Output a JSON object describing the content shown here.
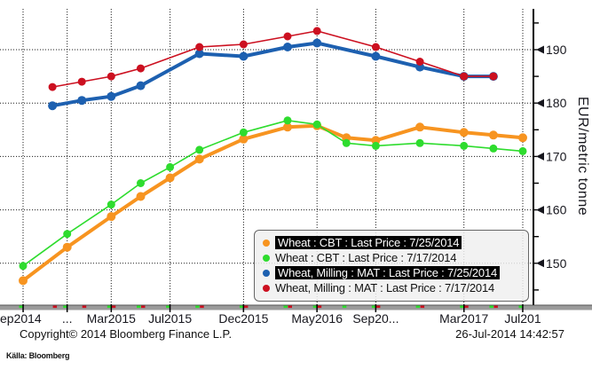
{
  "chart_data": {
    "type": "line",
    "title": "",
    "xlabel": "",
    "ylabel": "EUR/metric tonne",
    "ylim": [
      142,
      198
    ],
    "y_major_ticks": [
      150,
      160,
      170,
      180,
      190
    ],
    "y_minor_ticks": [
      145,
      155,
      165,
      175,
      185,
      195
    ],
    "grid": "dotted",
    "legend_position": "bottom-right",
    "x_axis_note": "futures contract months, Sep2014 through Jul2017 (m = months after Sep2014)",
    "x_ticks": [
      {
        "label": "ep2014",
        "m": 0
      },
      {
        "label": "...",
        "m": 3
      },
      {
        "label": "Mar2015",
        "m": 6
      },
      {
        "label": "Jul2015",
        "m": 10
      },
      {
        "label": "Dec2015",
        "m": 15
      },
      {
        "label": "May2016",
        "m": 20
      },
      {
        "label": "Sep20...",
        "m": 24
      },
      {
        "label": "Mar2017",
        "m": 30
      },
      {
        "label": "Jul201",
        "m": 34
      }
    ],
    "series": [
      {
        "name": "Wheat : CBT : Last Price : 7/25/2014",
        "color": "#f79420",
        "line_width": 4,
        "marker_radius": 5,
        "highlighted": true,
        "x_months": [
          0,
          3,
          6,
          8,
          10,
          12,
          15,
          18,
          20,
          22,
          24,
          27,
          30,
          32,
          34
        ],
        "values": [
          146.75,
          153,
          158.75,
          162.5,
          166,
          169.5,
          173.25,
          175.5,
          175.75,
          173.5,
          173,
          175.5,
          174.5,
          174,
          173.5
        ]
      },
      {
        "name": "Wheat : CBT : Last Price : 7/17/2014",
        "color": "#2edc2e",
        "line_width": 1.6,
        "marker_radius": 4.5,
        "highlighted": false,
        "x_months": [
          0,
          3,
          6,
          8,
          10,
          12,
          15,
          18,
          20,
          22,
          24,
          27,
          30,
          32,
          34
        ],
        "values": [
          149.5,
          155.5,
          161,
          165,
          168,
          171.25,
          174.5,
          176.75,
          176,
          172.5,
          172,
          172.5,
          172,
          171.5,
          171
        ]
      },
      {
        "name": "Wheat, Milling : MAT : Last Price : 7/25/2014",
        "color": "#1d60b0",
        "line_width": 4,
        "marker_radius": 5,
        "highlighted": true,
        "x_months": [
          2,
          4,
          6,
          8,
          12,
          15,
          18,
          20,
          24,
          27,
          30,
          32
        ],
        "values": [
          179.5,
          180.5,
          181.25,
          183.25,
          189.25,
          188.75,
          190.5,
          191.25,
          188.75,
          186.75,
          185,
          185
        ]
      },
      {
        "name": "Wheat, Milling : MAT : Last Price : 7/17/2014",
        "color": "#cc1020",
        "line_width": 1.6,
        "marker_radius": 4.5,
        "highlighted": false,
        "x_months": [
          2,
          4,
          6,
          8,
          12,
          15,
          18,
          20,
          24,
          27,
          30,
          32
        ],
        "values": [
          183,
          184,
          185,
          186.5,
          190.5,
          191,
          192.5,
          193.5,
          190.5,
          187.75,
          185,
          185
        ]
      }
    ]
  },
  "footer": {
    "copyright": "Copyright© 2014 Bloomberg Finance L.P.",
    "timestamp": "26-Jul-2014 14:42:57",
    "source": "Källa: Bloomberg"
  },
  "colors": {
    "grid": "#1a1a1a",
    "axis": "#000000",
    "tick_label": "#16161d",
    "scrollbar": "#9a9a9a",
    "scrollbar_edge": "#555555",
    "cbt_dash": "#2edc2e",
    "mat_dash": "#cc1020"
  }
}
